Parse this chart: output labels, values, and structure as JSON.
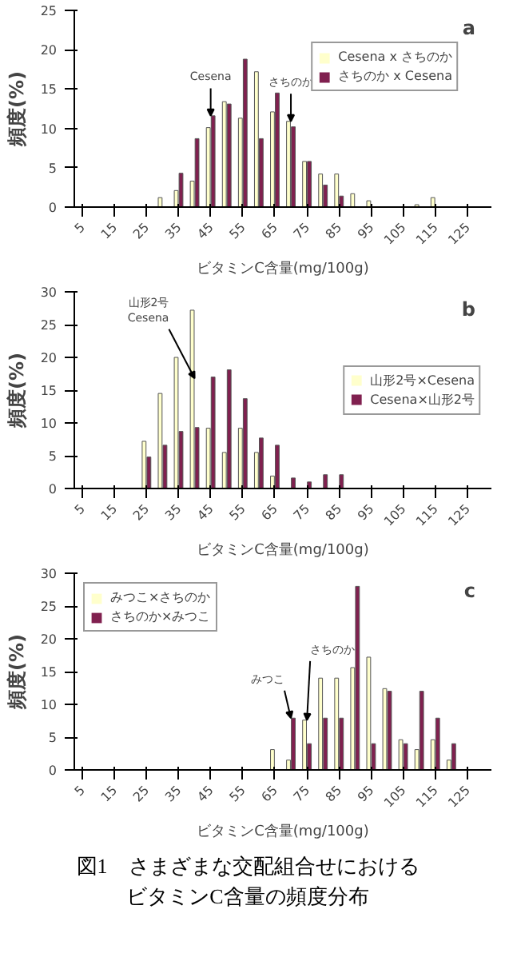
{
  "chart_data": [
    {
      "type": "bar",
      "title": "a",
      "xlabel": "ビタミンC含量(mg/100g)",
      "ylabel": "頻度(%)",
      "x": [
        5,
        10,
        15,
        20,
        25,
        30,
        35,
        40,
        45,
        50,
        55,
        60,
        65,
        70,
        75,
        80,
        85,
        90,
        95,
        100,
        105,
        110,
        115,
        120,
        125,
        130
      ],
      "xlim": [
        2.5,
        132.5
      ],
      "xticks": [
        5,
        15,
        25,
        35,
        45,
        55,
        65,
        75,
        85,
        95,
        105,
        115,
        125
      ],
      "ylim": [
        0,
        25
      ],
      "yticks": [
        0,
        5,
        10,
        15,
        20,
        25
      ],
      "series": [
        {
          "name": "Cesena x さちのか",
          "color": "#ffffcc",
          "values": [
            0,
            0,
            0,
            0,
            0,
            1.2,
            2.1,
            3.3,
            10.1,
            13.4,
            11.3,
            17.2,
            12.1,
            10.9,
            5.8,
            4.2,
            4.2,
            1.7,
            0.8,
            0,
            0,
            0.3,
            1.2,
            0,
            0,
            0
          ]
        },
        {
          "name": "さちのか x Cesena",
          "color": "#80204f",
          "values": [
            0,
            0,
            0,
            0,
            0,
            0,
            4.3,
            8.7,
            11.6,
            13.1,
            18.8,
            8.7,
            14.5,
            10.2,
            5.8,
            2.8,
            1.4,
            0,
            0,
            0,
            0,
            0,
            0,
            0,
            0,
            0
          ]
        }
      ],
      "annotations": [
        {
          "text": "Cesena",
          "x": 45,
          "y": 11.6
        },
        {
          "text": "さちのか",
          "x": 70,
          "y": 10.9
        }
      ],
      "legend": "top right",
      "grid": false
    },
    {
      "type": "bar",
      "title": "b",
      "xlabel": "ビタミンC含量(mg/100g)",
      "ylabel": "頻度(%)",
      "x": [
        5,
        10,
        15,
        20,
        25,
        30,
        35,
        40,
        45,
        50,
        55,
        60,
        65,
        70,
        75,
        80,
        85,
        90,
        95,
        100,
        105,
        110,
        115,
        120,
        125,
        130
      ],
      "xlim": [
        2.5,
        132.5
      ],
      "xticks": [
        5,
        15,
        25,
        35,
        45,
        55,
        65,
        75,
        85,
        95,
        105,
        115,
        125
      ],
      "ylim": [
        0,
        30
      ],
      "yticks": [
        0,
        5,
        10,
        15,
        20,
        25,
        30
      ],
      "series": [
        {
          "name": "山形2号×Cesena",
          "color": "#ffffcc",
          "values": [
            0,
            0,
            0,
            0,
            7.2,
            14.5,
            20,
            27.2,
            9.2,
            5.5,
            9.2,
            5.5,
            1.9,
            0,
            0,
            0,
            0,
            0,
            0,
            0,
            0,
            0,
            0,
            0,
            0,
            0
          ]
        },
        {
          "name": "Cesena×山形2号",
          "color": "#80204f",
          "values": [
            0,
            0,
            0,
            0,
            4.8,
            6.6,
            8.7,
            9.3,
            17,
            18.1,
            13.7,
            7.7,
            6.6,
            1.6,
            1,
            2.1,
            2.1,
            0,
            0,
            0,
            0,
            0,
            0,
            0,
            0,
            0
          ]
        }
      ],
      "annotations": [
        {
          "text": "山形2号\nCesena",
          "x": 40,
          "y": 16.8
        }
      ],
      "legend": "right",
      "grid": false
    },
    {
      "type": "bar",
      "title": "c",
      "xlabel": "ビタミンC含量(mg/100g)",
      "ylabel": "頻度(%)",
      "x": [
        5,
        10,
        15,
        20,
        25,
        30,
        35,
        40,
        45,
        50,
        55,
        60,
        65,
        70,
        75,
        80,
        85,
        90,
        95,
        100,
        105,
        110,
        115,
        120,
        125,
        130
      ],
      "xlim": [
        2.5,
        132.5
      ],
      "xticks": [
        5,
        15,
        25,
        35,
        45,
        55,
        65,
        75,
        85,
        95,
        105,
        115,
        125
      ],
      "ylim": [
        0,
        30
      ],
      "yticks": [
        0,
        5,
        10,
        15,
        20,
        25,
        30
      ],
      "series": [
        {
          "name": "みつこ×さちのか",
          "color": "#ffffcc",
          "values": [
            0,
            0,
            0,
            0,
            0,
            0,
            0,
            0,
            0,
            0,
            0,
            0,
            3.1,
            1.5,
            7.6,
            14,
            14,
            15.6,
            17.2,
            12.4,
            4.6,
            3.1,
            4.6,
            1.5,
            0,
            0
          ]
        },
        {
          "name": "さちのか×みつこ",
          "color": "#80204f",
          "values": [
            0,
            0,
            0,
            0,
            0,
            0,
            0,
            0,
            0,
            0,
            0,
            0,
            0,
            7.9,
            4,
            7.9,
            7.9,
            28,
            4,
            12,
            4,
            12,
            7.9,
            4,
            0,
            0
          ]
        }
      ],
      "annotations": [
        {
          "text": "みつこ",
          "x": 70,
          "y": 7.9
        },
        {
          "text": "さちのか",
          "x": 75,
          "y": 7.6
        },
        "図1　さまざまな交配組合せにおける",
        "ビタミンC含量の頻度分布"
      ],
      "legend": "top left",
      "grid": false
    }
  ]
}
